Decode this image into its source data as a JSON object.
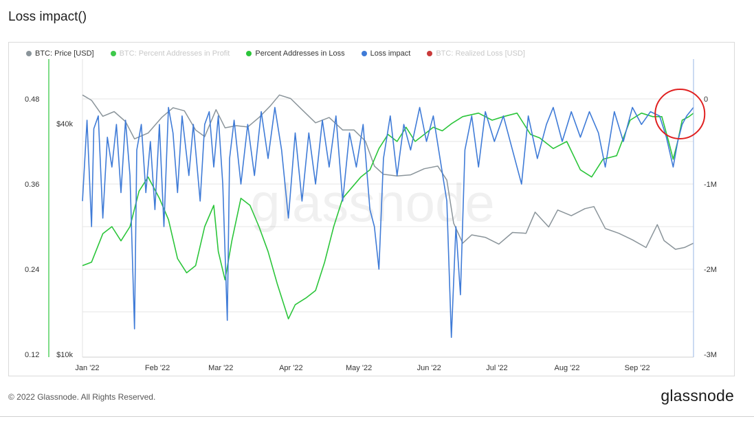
{
  "page": {
    "title": "Loss impact()"
  },
  "legend": [
    {
      "label": "BTC: Price [USD]",
      "color": "#8a949a",
      "muted": false
    },
    {
      "label": "BTC: Percent Addresses in Profit",
      "color": "#3ec94b",
      "muted": true
    },
    {
      "label": "Percent Addresses in Loss",
      "color": "#2bc53a",
      "muted": false
    },
    {
      "label": "Loss impact",
      "color": "#3f7bd7",
      "muted": false
    },
    {
      "label": "BTC: Realized Loss [USD]",
      "color": "#c93a3a",
      "muted": true
    }
  ],
  "watermark": "glassnode",
  "footer": {
    "copyright": "© 2022 Glassnode. All Rights Reserved.",
    "brand": "glassnode"
  },
  "colors": {
    "price": "#8a949a",
    "loss_pct": "#2bc53a",
    "loss_impact": "#3f7bd7",
    "highlight": "#e02020",
    "grid": "#e6e6e6"
  },
  "chart_data": {
    "type": "line",
    "title": "Loss impact()",
    "x_tick_labels": [
      "Jan '22",
      "Feb '22",
      "Mar '22",
      "Apr '22",
      "May '22",
      "Jun '22",
      "Jul '22",
      "Aug '22",
      "Sep '22"
    ],
    "x_range": [
      "2022-01-01",
      "2022-09-28"
    ],
    "axes": {
      "left_outer": {
        "series": "Percent Addresses in Loss",
        "ticks": [
          "0.48",
          "0.36",
          "0.24",
          "0.12"
        ],
        "range": [
          0.12,
          0.48
        ]
      },
      "left_inner": {
        "series": "BTC: Price [USD]",
        "ticks": [
          "$40k",
          "$10k"
        ],
        "scale": "log"
      },
      "right": {
        "series": "Loss impact",
        "ticks": [
          "0",
          "-1M",
          "-2M",
          "-3M"
        ],
        "range": [
          -3000000,
          0
        ]
      }
    },
    "grid": true,
    "legend_position": "top-left",
    "annotation": {
      "type": "circle",
      "color": "#e02020",
      "near": "2022-09-22"
    },
    "series": [
      {
        "name": "Percent Addresses in Loss",
        "axis": "left_outer",
        "points": [
          [
            "2022-01-01",
            0.245
          ],
          [
            "2022-01-05",
            0.25
          ],
          [
            "2022-01-10",
            0.29
          ],
          [
            "2022-01-14",
            0.3
          ],
          [
            "2022-01-18",
            0.28
          ],
          [
            "2022-01-22",
            0.3
          ],
          [
            "2022-01-26",
            0.35
          ],
          [
            "2022-01-30",
            0.37
          ],
          [
            "2022-02-04",
            0.34
          ],
          [
            "2022-02-08",
            0.31
          ],
          [
            "2022-02-12",
            0.255
          ],
          [
            "2022-02-16",
            0.235
          ],
          [
            "2022-02-20",
            0.245
          ],
          [
            "2022-02-24",
            0.3
          ],
          [
            "2022-02-28",
            0.33
          ],
          [
            "2022-03-02",
            0.265
          ],
          [
            "2022-03-05",
            0.225
          ],
          [
            "2022-03-08",
            0.28
          ],
          [
            "2022-03-12",
            0.34
          ],
          [
            "2022-03-16",
            0.33
          ],
          [
            "2022-03-20",
            0.3
          ],
          [
            "2022-03-24",
            0.265
          ],
          [
            "2022-03-28",
            0.22
          ],
          [
            "2022-04-02",
            0.17
          ],
          [
            "2022-04-05",
            0.19
          ],
          [
            "2022-04-10",
            0.2
          ],
          [
            "2022-04-14",
            0.21
          ],
          [
            "2022-04-18",
            0.25
          ],
          [
            "2022-04-22",
            0.3
          ],
          [
            "2022-04-26",
            0.34
          ],
          [
            "2022-04-30",
            0.355
          ],
          [
            "2022-05-04",
            0.37
          ],
          [
            "2022-05-08",
            0.38
          ],
          [
            "2022-05-12",
            0.41
          ],
          [
            "2022-05-16",
            0.43
          ],
          [
            "2022-05-20",
            0.42
          ],
          [
            "2022-05-24",
            0.44
          ],
          [
            "2022-05-28",
            0.42
          ],
          [
            "2022-06-01",
            0.43
          ],
          [
            "2022-06-05",
            0.44
          ],
          [
            "2022-06-09",
            0.435
          ],
          [
            "2022-06-13",
            0.445
          ],
          [
            "2022-06-18",
            0.455
          ],
          [
            "2022-06-25",
            0.46
          ],
          [
            "2022-07-01",
            0.45
          ],
          [
            "2022-07-06",
            0.455
          ],
          [
            "2022-07-12",
            0.46
          ],
          [
            "2022-07-18",
            0.43
          ],
          [
            "2022-07-22",
            0.425
          ],
          [
            "2022-07-28",
            0.41
          ],
          [
            "2022-08-03",
            0.42
          ],
          [
            "2022-08-09",
            0.38
          ],
          [
            "2022-08-14",
            0.37
          ],
          [
            "2022-08-19",
            0.395
          ],
          [
            "2022-08-25",
            0.4
          ],
          [
            "2022-08-31",
            0.45
          ],
          [
            "2022-09-05",
            0.46
          ],
          [
            "2022-09-10",
            0.455
          ],
          [
            "2022-09-14",
            0.455
          ],
          [
            "2022-09-17",
            0.42
          ],
          [
            "2022-09-19",
            0.395
          ],
          [
            "2022-09-21",
            0.42
          ],
          [
            "2022-09-23",
            0.45
          ],
          [
            "2022-09-26",
            0.455
          ],
          [
            "2022-09-28",
            0.46
          ]
        ]
      },
      {
        "name": "BTC: Price [USD]",
        "axis": "left_inner",
        "points": [
          [
            "2022-01-01",
            47500
          ],
          [
            "2022-01-05",
            46000
          ],
          [
            "2022-01-10",
            41800
          ],
          [
            "2022-01-15",
            43000
          ],
          [
            "2022-01-20",
            40500
          ],
          [
            "2022-01-24",
            36500
          ],
          [
            "2022-01-30",
            37800
          ],
          [
            "2022-02-05",
            41500
          ],
          [
            "2022-02-10",
            44000
          ],
          [
            "2022-02-15",
            43200
          ],
          [
            "2022-02-20",
            38500
          ],
          [
            "2022-02-24",
            37000
          ],
          [
            "2022-03-01",
            43500
          ],
          [
            "2022-03-05",
            39000
          ],
          [
            "2022-03-10",
            39500
          ],
          [
            "2022-03-15",
            39200
          ],
          [
            "2022-03-20",
            41500
          ],
          [
            "2022-03-25",
            44500
          ],
          [
            "2022-03-29",
            47500
          ],
          [
            "2022-04-03",
            46500
          ],
          [
            "2022-04-08",
            43500
          ],
          [
            "2022-04-14",
            40200
          ],
          [
            "2022-04-20",
            41500
          ],
          [
            "2022-04-26",
            38500
          ],
          [
            "2022-05-01",
            38500
          ],
          [
            "2022-05-06",
            36000
          ],
          [
            "2022-05-10",
            31000
          ],
          [
            "2022-05-14",
            29500
          ],
          [
            "2022-05-20",
            29200
          ],
          [
            "2022-05-26",
            29400
          ],
          [
            "2022-06-01",
            30500
          ],
          [
            "2022-06-07",
            31000
          ],
          [
            "2022-06-11",
            28500
          ],
          [
            "2022-06-14",
            22000
          ],
          [
            "2022-06-18",
            19500
          ],
          [
            "2022-06-22",
            20500
          ],
          [
            "2022-06-28",
            20200
          ],
          [
            "2022-07-04",
            19400
          ],
          [
            "2022-07-10",
            20800
          ],
          [
            "2022-07-16",
            20700
          ],
          [
            "2022-07-20",
            23500
          ],
          [
            "2022-07-26",
            21500
          ],
          [
            "2022-07-30",
            23800
          ],
          [
            "2022-08-05",
            23000
          ],
          [
            "2022-08-11",
            24000
          ],
          [
            "2022-08-15",
            24300
          ],
          [
            "2022-08-20",
            21300
          ],
          [
            "2022-08-26",
            20700
          ],
          [
            "2022-09-01",
            19900
          ],
          [
            "2022-09-07",
            19000
          ],
          [
            "2022-09-12",
            21800
          ],
          [
            "2022-09-15",
            19800
          ],
          [
            "2022-09-20",
            18800
          ],
          [
            "2022-09-24",
            19000
          ],
          [
            "2022-09-28",
            19500
          ]
        ]
      },
      {
        "name": "Loss impact",
        "axis": "right",
        "points": [
          [
            "2022-01-01",
            -1200000
          ],
          [
            "2022-01-03",
            -250000
          ],
          [
            "2022-01-05",
            -1500000
          ],
          [
            "2022-01-06",
            -350000
          ],
          [
            "2022-01-08",
            -200000
          ],
          [
            "2022-01-10",
            -1400000
          ],
          [
            "2022-01-12",
            -450000
          ],
          [
            "2022-01-14",
            -800000
          ],
          [
            "2022-01-16",
            -300000
          ],
          [
            "2022-01-18",
            -1100000
          ],
          [
            "2022-01-20",
            -250000
          ],
          [
            "2022-01-22",
            -900000
          ],
          [
            "2022-01-24",
            -2700000
          ],
          [
            "2022-01-25",
            -600000
          ],
          [
            "2022-01-27",
            -300000
          ],
          [
            "2022-01-29",
            -1100000
          ],
          [
            "2022-01-31",
            -500000
          ],
          [
            "2022-02-02",
            -1300000
          ],
          [
            "2022-02-04",
            -300000
          ],
          [
            "2022-02-06",
            -1500000
          ],
          [
            "2022-02-08",
            -100000
          ],
          [
            "2022-02-10",
            -400000
          ],
          [
            "2022-02-12",
            -1100000
          ],
          [
            "2022-02-14",
            -200000
          ],
          [
            "2022-02-17",
            -900000
          ],
          [
            "2022-02-19",
            -300000
          ],
          [
            "2022-02-22",
            -1200000
          ],
          [
            "2022-02-24",
            -300000
          ],
          [
            "2022-02-26",
            -150000
          ],
          [
            "2022-02-28",
            -800000
          ],
          [
            "2022-03-02",
            -200000
          ],
          [
            "2022-03-04",
            -1000000
          ],
          [
            "2022-03-06",
            -2600000
          ],
          [
            "2022-03-07",
            -700000
          ],
          [
            "2022-03-09",
            -250000
          ],
          [
            "2022-03-12",
            -1000000
          ],
          [
            "2022-03-15",
            -300000
          ],
          [
            "2022-03-18",
            -900000
          ],
          [
            "2022-03-21",
            -150000
          ],
          [
            "2022-03-24",
            -700000
          ],
          [
            "2022-03-27",
            -100000
          ],
          [
            "2022-03-30",
            -600000
          ],
          [
            "2022-04-02",
            -1400000
          ],
          [
            "2022-04-05",
            -400000
          ],
          [
            "2022-04-08",
            -1200000
          ],
          [
            "2022-04-11",
            -400000
          ],
          [
            "2022-04-14",
            -1000000
          ],
          [
            "2022-04-17",
            -250000
          ],
          [
            "2022-04-20",
            -800000
          ],
          [
            "2022-04-23",
            -200000
          ],
          [
            "2022-04-26",
            -1200000
          ],
          [
            "2022-04-29",
            -400000
          ],
          [
            "2022-05-02",
            -800000
          ],
          [
            "2022-05-05",
            -300000
          ],
          [
            "2022-05-08",
            -1300000
          ],
          [
            "2022-05-10",
            -1500000
          ],
          [
            "2022-05-12",
            -2000000
          ],
          [
            "2022-05-14",
            -700000
          ],
          [
            "2022-05-17",
            -200000
          ],
          [
            "2022-05-20",
            -900000
          ],
          [
            "2022-05-23",
            -300000
          ],
          [
            "2022-05-26",
            -600000
          ],
          [
            "2022-05-30",
            -100000
          ],
          [
            "2022-06-02",
            -500000
          ],
          [
            "2022-06-05",
            -200000
          ],
          [
            "2022-06-08",
            -700000
          ],
          [
            "2022-06-11",
            -1200000
          ],
          [
            "2022-06-13",
            -2800000
          ],
          [
            "2022-06-15",
            -1500000
          ],
          [
            "2022-06-17",
            -2300000
          ],
          [
            "2022-06-19",
            -600000
          ],
          [
            "2022-06-22",
            -200000
          ],
          [
            "2022-06-25",
            -800000
          ],
          [
            "2022-06-28",
            -150000
          ],
          [
            "2022-07-02",
            -500000
          ],
          [
            "2022-07-06",
            -200000
          ],
          [
            "2022-07-10",
            -600000
          ],
          [
            "2022-07-14",
            -1000000
          ],
          [
            "2022-07-17",
            -200000
          ],
          [
            "2022-07-21",
            -700000
          ],
          [
            "2022-07-25",
            -300000
          ],
          [
            "2022-07-28",
            -100000
          ],
          [
            "2022-08-01",
            -500000
          ],
          [
            "2022-08-05",
            -150000
          ],
          [
            "2022-08-09",
            -450000
          ],
          [
            "2022-08-13",
            -150000
          ],
          [
            "2022-08-17",
            -400000
          ],
          [
            "2022-08-20",
            -800000
          ],
          [
            "2022-08-24",
            -150000
          ],
          [
            "2022-08-28",
            -500000
          ],
          [
            "2022-09-01",
            -100000
          ],
          [
            "2022-09-05",
            -300000
          ],
          [
            "2022-09-09",
            -150000
          ],
          [
            "2022-09-13",
            -200000
          ],
          [
            "2022-09-16",
            -450000
          ],
          [
            "2022-09-19",
            -800000
          ],
          [
            "2022-09-21",
            -500000
          ],
          [
            "2022-09-23",
            -300000
          ],
          [
            "2022-09-25",
            -200000
          ],
          [
            "2022-09-28",
            -100000
          ]
        ]
      }
    ]
  }
}
